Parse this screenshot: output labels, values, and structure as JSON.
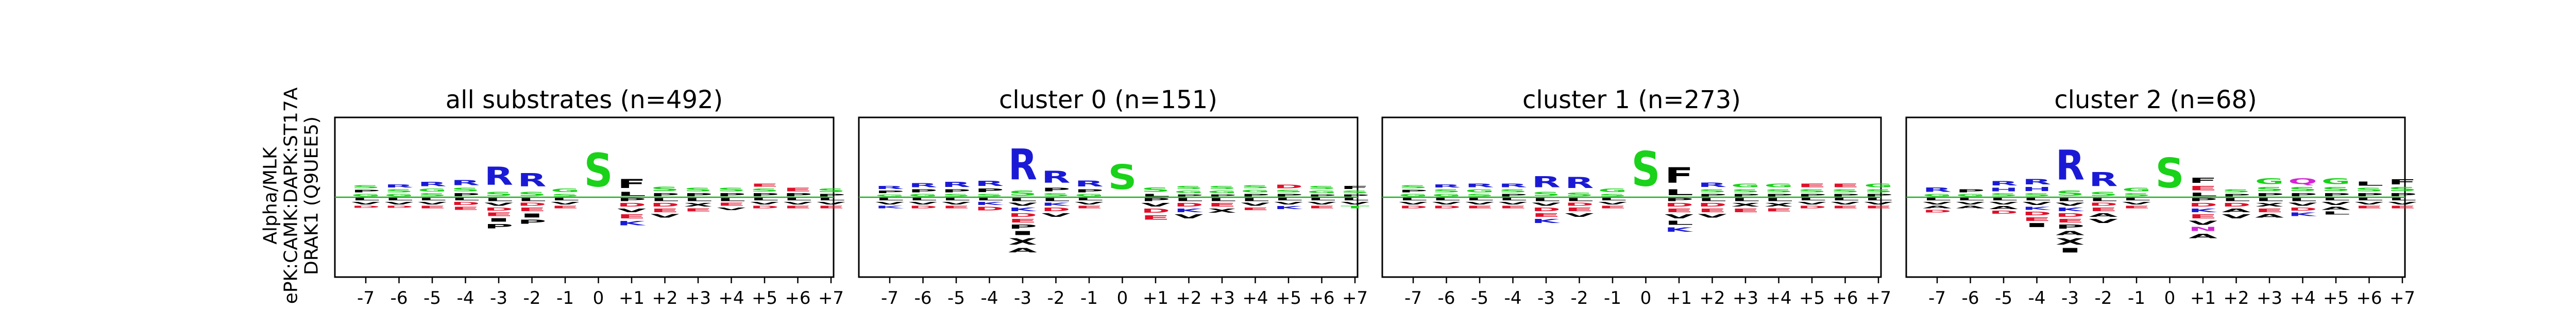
{
  "ylabel_lines": [
    "Alpha/MLK",
    "ePK:CAMK:DAPK:ST17A",
    "DRAK1 (Q9UEE5)"
  ],
  "colors": {
    "basic": "#1a1ad6",
    "acidic": "#e0102a",
    "polar": "#19d219",
    "hydrophobic": "#000000",
    "amide": "#d424d4"
  },
  "chart_data": [
    {
      "type": "sequence-logo",
      "title": "all substrates (n=492)",
      "categories": [
        "-7",
        "-6",
        "-5",
        "-4",
        "-3",
        "-2",
        "-1",
        "0",
        "+1",
        "+2",
        "+3",
        "+4",
        "+5",
        "+6",
        "+7"
      ],
      "positive": [
        [
          "G",
          "P",
          "S"
        ],
        [
          "G",
          "S",
          "R"
        ],
        [
          "S",
          "G",
          "R"
        ],
        [
          "P",
          "S",
          "R"
        ],
        [
          "S",
          "R"
        ],
        [
          "S",
          "R"
        ],
        [
          "S",
          "G"
        ],
        [
          "S"
        ],
        [
          "L",
          "F"
        ],
        [
          "P",
          "S"
        ],
        [
          "P",
          "S"
        ],
        [
          "P",
          "S"
        ],
        [
          "P",
          "S",
          "E"
        ],
        [
          "P",
          "E"
        ],
        [
          "P",
          "S"
        ]
      ],
      "positive_heights": [
        [
          0.05,
          0.05,
          0.06
        ],
        [
          0.05,
          0.06,
          0.06
        ],
        [
          0.06,
          0.06,
          0.09
        ],
        [
          0.06,
          0.07,
          0.1
        ],
        [
          0.08,
          0.36
        ],
        [
          0.08,
          0.27
        ],
        [
          0.05,
          0.07
        ],
        [
          0.67
        ],
        [
          0.08,
          0.18
        ],
        [
          0.06,
          0.09
        ],
        [
          0.06,
          0.07
        ],
        [
          0.06,
          0.07
        ],
        [
          0.06,
          0.06,
          0.06
        ],
        [
          0.06,
          0.07
        ],
        [
          0.05,
          0.07
        ]
      ],
      "negative": [
        [
          "L",
          "V",
          "D"
        ],
        [
          "L",
          "V",
          "D"
        ],
        [
          "L",
          "V",
          "E"
        ],
        [
          "L",
          "D",
          "E"
        ],
        [
          "L",
          "V",
          "D",
          "E",
          "I",
          "P"
        ],
        [
          "L",
          "D",
          "E",
          "I",
          "P"
        ],
        [
          "L",
          "V",
          "E"
        ],
        [],
        [
          "P",
          "D",
          "V",
          "E",
          "K"
        ],
        [
          "L",
          "D",
          "E",
          "V"
        ],
        [
          "L",
          "X",
          "E"
        ],
        [
          "L",
          "E",
          "V"
        ],
        [
          "L",
          "V",
          "D"
        ],
        [
          "L",
          "V",
          "E"
        ],
        [
          "L",
          "V",
          "E"
        ]
      ],
      "negative_heights": [
        [
          0.05,
          0.05,
          0.04
        ],
        [
          0.05,
          0.05,
          0.04
        ],
        [
          0.05,
          0.05,
          0.05
        ],
        [
          0.05,
          0.06,
          0.06
        ],
        [
          0.06,
          0.06,
          0.06,
          0.07,
          0.07,
          0.09
        ],
        [
          0.06,
          0.06,
          0.07,
          0.08,
          0.08
        ],
        [
          0.05,
          0.05,
          0.05
        ],
        [],
        [
          0.06,
          0.07,
          0.07,
          0.08,
          0.09
        ],
        [
          0.06,
          0.07,
          0.07,
          0.07
        ],
        [
          0.06,
          0.07,
          0.06
        ],
        [
          0.06,
          0.06,
          0.05
        ],
        [
          0.05,
          0.05,
          0.05
        ],
        [
          0.05,
          0.05,
          0.05
        ],
        [
          0.05,
          0.05,
          0.05
        ]
      ]
    },
    {
      "type": "sequence-logo",
      "title": "cluster 0 (n=151)",
      "categories": [
        "-7",
        "-6",
        "-5",
        "-4",
        "-3",
        "-2",
        "-1",
        "0",
        "+1",
        "+2",
        "+3",
        "+4",
        "+5",
        "+6",
        "+7"
      ],
      "positive": [
        [
          "G",
          "P",
          "R"
        ],
        [
          "G",
          "P",
          "R"
        ],
        [
          "S",
          "P",
          "R"
        ],
        [
          "S",
          "P",
          "R"
        ],
        [
          "S",
          "R"
        ],
        [
          "S",
          "P",
          "R"
        ],
        [
          "G",
          "P",
          "R"
        ],
        [
          "S"
        ],
        [
          "L",
          "S"
        ],
        [
          "P",
          "G",
          "S"
        ],
        [
          "P",
          "G",
          "S"
        ],
        [
          "P",
          "G",
          "S"
        ],
        [
          "P",
          "S",
          "D"
        ],
        [
          "P",
          "G",
          "S"
        ],
        [
          "P",
          "S",
          "F"
        ]
      ],
      "positive_heights": [
        [
          0.04,
          0.05,
          0.06
        ],
        [
          0.05,
          0.06,
          0.08
        ],
        [
          0.05,
          0.06,
          0.1
        ],
        [
          0.05,
          0.07,
          0.1
        ],
        [
          0.1,
          0.62
        ],
        [
          0.06,
          0.07,
          0.24
        ],
        [
          0.05,
          0.06,
          0.12
        ],
        [
          0.5
        ],
        [
          0.05,
          0.09
        ],
        [
          0.04,
          0.05,
          0.06
        ],
        [
          0.04,
          0.05,
          0.06
        ],
        [
          0.05,
          0.05,
          0.06
        ],
        [
          0.05,
          0.05,
          0.07
        ],
        [
          0.04,
          0.05,
          0.06
        ],
        [
          0.04,
          0.05,
          0.06
        ]
      ],
      "negative": [
        [
          "L",
          "V",
          "K"
        ],
        [
          "L",
          "V",
          "D"
        ],
        [
          "L",
          "V",
          "E"
        ],
        [
          "L",
          "K",
          "D"
        ],
        [
          "L",
          "V",
          "K",
          "D",
          "E",
          "P",
          "I",
          "X",
          "A"
        ],
        [
          "L",
          "K",
          "D",
          "V"
        ],
        [
          "L",
          "V",
          "E"
        ],
        [],
        [
          "P",
          "V",
          "D",
          "E"
        ],
        [
          "L",
          "D",
          "K",
          "V"
        ],
        [
          "L",
          "E",
          "X"
        ],
        [
          "L",
          "V",
          "E"
        ],
        [
          "L",
          "V",
          "K"
        ],
        [
          "L",
          "V",
          "E"
        ],
        [
          "L",
          "V",
          "T"
        ]
      ],
      "negative_heights": [
        [
          0.05,
          0.05,
          0.05
        ],
        [
          0.05,
          0.05,
          0.05
        ],
        [
          0.05,
          0.05,
          0.05
        ],
        [
          0.05,
          0.06,
          0.07
        ],
        [
          0.06,
          0.06,
          0.07,
          0.07,
          0.07,
          0.08,
          0.08,
          0.13,
          0.09
        ],
        [
          0.06,
          0.06,
          0.07,
          0.07
        ],
        [
          0.05,
          0.05,
          0.05
        ],
        [],
        [
          0.06,
          0.07,
          0.08,
          0.09
        ],
        [
          0.06,
          0.07,
          0.07,
          0.08
        ],
        [
          0.06,
          0.07,
          0.08
        ],
        [
          0.06,
          0.06,
          0.05
        ],
        [
          0.05,
          0.05,
          0.06
        ],
        [
          0.05,
          0.05,
          0.05
        ],
        [
          0.05,
          0.05,
          0.05
        ]
      ]
    },
    {
      "type": "sequence-logo",
      "title": "cluster 1 (n=273)",
      "categories": [
        "-7",
        "-6",
        "-5",
        "-4",
        "-3",
        "-2",
        "-1",
        "0",
        "+1",
        "+2",
        "+3",
        "+4",
        "+5",
        "+6",
        "+7"
      ],
      "positive": [
        [
          "G",
          "P",
          "S"
        ],
        [
          "G",
          "S",
          "R"
        ],
        [
          "S",
          "G",
          "R"
        ],
        [
          "P",
          "S",
          "R"
        ],
        [
          "S",
          "R"
        ],
        [
          "S",
          "R"
        ],
        [
          "S",
          "G"
        ],
        [
          "S"
        ],
        [
          "L",
          "F"
        ],
        [
          "P",
          "S",
          "R"
        ],
        [
          "P",
          "S",
          "G"
        ],
        [
          "P",
          "S",
          "G"
        ],
        [
          "P",
          "S",
          "E"
        ],
        [
          "P",
          "S",
          "E"
        ],
        [
          "P",
          "S",
          "G"
        ]
      ],
      "positive_heights": [
        [
          0.05,
          0.05,
          0.06
        ],
        [
          0.05,
          0.06,
          0.06
        ],
        [
          0.05,
          0.06,
          0.07
        ],
        [
          0.05,
          0.06,
          0.07
        ],
        [
          0.08,
          0.22
        ],
        [
          0.07,
          0.22
        ],
        [
          0.05,
          0.07
        ],
        [
          0.7
        ],
        [
          0.12,
          0.31
        ],
        [
          0.05,
          0.06,
          0.09
        ],
        [
          0.05,
          0.06,
          0.07
        ],
        [
          0.05,
          0.06,
          0.07
        ],
        [
          0.05,
          0.06,
          0.07
        ],
        [
          0.05,
          0.06,
          0.07
        ],
        [
          0.05,
          0.06,
          0.07
        ]
      ],
      "negative": [
        [
          "L",
          "V",
          "D"
        ],
        [
          "L",
          "V",
          "D"
        ],
        [
          "L",
          "V",
          "E"
        ],
        [
          "L",
          "V",
          "E"
        ],
        [
          "L",
          "V",
          "D",
          "E",
          "K"
        ],
        [
          "L",
          "D",
          "E",
          "V"
        ],
        [
          "L",
          "V",
          "E"
        ],
        [],
        [
          "P",
          "D",
          "E",
          "V",
          "L",
          "K"
        ],
        [
          "L",
          "D",
          "E",
          "V"
        ],
        [
          "L",
          "X",
          "E"
        ],
        [
          "L",
          "X",
          "E"
        ],
        [
          "L",
          "V",
          "D"
        ],
        [
          "L",
          "V",
          "E"
        ],
        [
          "L",
          "V",
          "E"
        ]
      ],
      "negative_heights": [
        [
          0.05,
          0.05,
          0.05
        ],
        [
          0.05,
          0.05,
          0.05
        ],
        [
          0.05,
          0.05,
          0.05
        ],
        [
          0.05,
          0.05,
          0.05
        ],
        [
          0.06,
          0.06,
          0.07,
          0.07,
          0.08
        ],
        [
          0.06,
          0.06,
          0.07,
          0.07
        ],
        [
          0.05,
          0.05,
          0.05
        ],
        [],
        [
          0.06,
          0.07,
          0.07,
          0.08,
          0.08,
          0.09
        ],
        [
          0.06,
          0.07,
          0.07,
          0.07
        ],
        [
          0.06,
          0.07,
          0.07
        ],
        [
          0.06,
          0.07,
          0.06
        ],
        [
          0.05,
          0.05,
          0.05
        ],
        [
          0.05,
          0.05,
          0.05
        ],
        [
          0.05,
          0.05,
          0.05
        ]
      ]
    },
    {
      "type": "sequence-logo",
      "title": "cluster 2 (n=68)",
      "categories": [
        "-7",
        "-6",
        "-5",
        "-4",
        "-3",
        "-2",
        "-1",
        "0",
        "+1",
        "+2",
        "+3",
        "+4",
        "+5",
        "+6",
        "+7"
      ],
      "positive": [
        [
          "G",
          "R"
        ],
        [
          "G",
          "P"
        ],
        [
          "S",
          "H",
          "R"
        ],
        [
          "S",
          "H",
          "R"
        ],
        [
          "S",
          "R"
        ],
        [
          "S",
          "R"
        ],
        [
          "S",
          "G"
        ],
        [
          "S"
        ],
        [
          "L",
          "E",
          "F"
        ],
        [
          "P",
          "S"
        ],
        [
          "P",
          "S",
          "G"
        ],
        [
          "P",
          "S",
          "Q"
        ],
        [
          "P",
          "S",
          "G"
        ],
        [
          "P",
          "S",
          "L"
        ],
        [
          "P",
          "S",
          "F"
        ]
      ],
      "positive_heights": [
        [
          0.05,
          0.09
        ],
        [
          0.05,
          0.06
        ],
        [
          0.06,
          0.07,
          0.09
        ],
        [
          0.06,
          0.08,
          0.11
        ],
        [
          0.1,
          0.6
        ],
        [
          0.08,
          0.28
        ],
        [
          0.06,
          0.07
        ],
        [
          0.6
        ],
        [
          0.07,
          0.09,
          0.1
        ],
        [
          0.05,
          0.06
        ],
        [
          0.06,
          0.08,
          0.12
        ],
        [
          0.06,
          0.08,
          0.12
        ],
        [
          0.06,
          0.08,
          0.12
        ],
        [
          0.06,
          0.07,
          0.08
        ],
        [
          0.06,
          0.08,
          0.1
        ]
      ],
      "negative": [
        [
          "L",
          "V",
          "A",
          "D"
        ],
        [
          "L",
          "V",
          "A"
        ],
        [
          "L",
          "V",
          "A",
          "D"
        ],
        [
          "L",
          "V",
          "K",
          "D",
          "E",
          "I"
        ],
        [
          "L",
          "V",
          "K",
          "D",
          "E",
          "P",
          "A",
          "X",
          "I"
        ],
        [
          "L",
          "D",
          "E",
          "A",
          "V"
        ],
        [
          "L",
          "V",
          "E"
        ],
        [],
        [
          "P",
          "D",
          "K",
          "E",
          "V",
          "N",
          "A"
        ],
        [
          "L",
          "D",
          "A",
          "V"
        ],
        [
          "L",
          "X",
          "E",
          "A"
        ],
        [
          "L",
          "V",
          "D",
          "K"
        ],
        [
          "L",
          "V",
          "A",
          "L"
        ],
        [
          "L",
          "V",
          "E"
        ],
        [
          "L",
          "V",
          "E"
        ]
      ],
      "negative_heights": [
        [
          0.05,
          0.05,
          0.05,
          0.05
        ],
        [
          0.05,
          0.05,
          0.05
        ],
        [
          0.05,
          0.05,
          0.06,
          0.06
        ],
        [
          0.05,
          0.06,
          0.06,
          0.07,
          0.07,
          0.08
        ],
        [
          0.06,
          0.06,
          0.07,
          0.07,
          0.07,
          0.08,
          0.08,
          0.13,
          0.09
        ],
        [
          0.06,
          0.06,
          0.07,
          0.07,
          0.08
        ],
        [
          0.05,
          0.05,
          0.05
        ],
        [],
        [
          0.06,
          0.07,
          0.07,
          0.08,
          0.08,
          0.08,
          0.09
        ],
        [
          0.06,
          0.07,
          0.07,
          0.08
        ],
        [
          0.06,
          0.07,
          0.07,
          0.07
        ],
        [
          0.06,
          0.06,
          0.06,
          0.07
        ],
        [
          0.05,
          0.06,
          0.06,
          0.06
        ],
        [
          0.05,
          0.05,
          0.05
        ],
        [
          0.05,
          0.05,
          0.05
        ]
      ]
    }
  ]
}
